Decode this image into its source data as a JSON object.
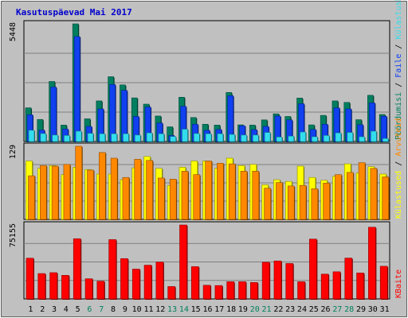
{
  "title": "Kasutuspäevad Mai 2017",
  "colors": {
    "background": "#C0C0C0",
    "title": "#0000CC",
    "panel": "#C0C0C0",
    "grid": "#808080",
    "visits": "#007F60",
    "pages": "#1040F0",
    "files": "#33DDEE",
    "hits": "#FF8800",
    "hits_light": "#FFFF00",
    "sites": "#FFBB00",
    "kbytes": "#FF0000",
    "weekend_day": "#00805C",
    "weekday": "#000000",
    "sep": "#000000"
  },
  "legend_right": {
    "top_segments": [
      {
        "text": "Pöördumisi",
        "color": "#007F60"
      },
      {
        "text": " / ",
        "color": "#000000"
      },
      {
        "text": "Faile",
        "color": "#1040F0"
      },
      {
        "text": " / ",
        "color": "#000000"
      },
      {
        "text": "Külastuskülgi",
        "color": "#33DDEE"
      }
    ],
    "middle_segments": [
      {
        "text": "Külastused",
        "color": "#FFFF00"
      },
      {
        "text": " / ",
        "color": "#000000"
      },
      {
        "text": "Arvuteid",
        "color": "#FF8800"
      }
    ],
    "bottom_segments": [
      {
        "text": "KBaite",
        "color": "#FF0000"
      }
    ]
  },
  "chart_data": [
    {
      "type": "bar",
      "panel": "top",
      "ymax_label": "5448",
      "ymax": 5448,
      "categories": [
        "1",
        "2",
        "3",
        "4",
        "5",
        "6",
        "7",
        "8",
        "9",
        "10",
        "11",
        "12",
        "13",
        "14",
        "15",
        "16",
        "17",
        "18",
        "19",
        "20",
        "21",
        "22",
        "23",
        "24",
        "25",
        "26",
        "27",
        "28",
        "29",
        "30",
        "31"
      ],
      "series": [
        {
          "name": "Pöördumisi",
          "color": "#007F60",
          "values": [
            1560,
            1020,
            2780,
            760,
            5448,
            1050,
            1880,
            3000,
            2620,
            2020,
            1730,
            1180,
            680,
            2050,
            1110,
            800,
            760,
            2270,
            770,
            760,
            1000,
            1280,
            1160,
            2010,
            770,
            1210,
            1880,
            1810,
            1010,
            2140,
            1250
          ]
        },
        {
          "name": "Faile",
          "color": "#1040F0",
          "values": [
            1240,
            530,
            2520,
            580,
            4860,
            700,
            1510,
            2640,
            2370,
            1160,
            1600,
            860,
            280,
            1630,
            800,
            520,
            560,
            2120,
            730,
            550,
            700,
            1180,
            1000,
            1750,
            560,
            800,
            1560,
            1510,
            780,
            1790,
            1170
          ]
        },
        {
          "name": "Külastuskülgi",
          "color": "#33DDEE",
          "values": [
            520,
            370,
            300,
            280,
            480,
            380,
            360,
            360,
            360,
            300,
            400,
            360,
            230,
            570,
            370,
            360,
            360,
            330,
            300,
            300,
            420,
            210,
            250,
            440,
            220,
            280,
            400,
            420,
            220,
            480,
            140
          ]
        }
      ]
    },
    {
      "type": "bar",
      "panel": "middle",
      "ymax_label": "129",
      "ymax": 129,
      "categories": [
        "1",
        "2",
        "3",
        "4",
        "5",
        "6",
        "7",
        "8",
        "9",
        "10",
        "11",
        "12",
        "13",
        "14",
        "15",
        "16",
        "17",
        "18",
        "19",
        "20",
        "21",
        "22",
        "23",
        "24",
        "25",
        "26",
        "27",
        "28",
        "29",
        "30",
        "31"
      ],
      "series": [
        {
          "name": "Külastused",
          "color": "#FFFF00",
          "values": [
            103,
            90,
            95,
            79,
            92,
            88,
            80,
            80,
            70,
            91,
            111,
            90,
            60,
            92,
            103,
            103,
            90,
            108,
            95,
            97,
            61,
            70,
            67,
            94,
            74,
            69,
            76,
            98,
            82,
            93,
            80
          ]
        },
        {
          "name": "Arvuteid",
          "color": "#FF8800",
          "values": [
            77,
            95,
            94,
            97,
            129,
            87,
            118,
            108,
            74,
            106,
            104,
            73,
            71,
            85,
            79,
            103,
            99,
            98,
            85,
            85,
            55,
            65,
            59,
            60,
            54,
            64,
            79,
            83,
            100,
            90,
            75
          ]
        }
      ]
    },
    {
      "type": "bar",
      "panel": "bottom",
      "ymax_label": "75155",
      "ymax": 75155,
      "categories": [
        "1",
        "2",
        "3",
        "4",
        "5",
        "6",
        "7",
        "8",
        "9",
        "10",
        "11",
        "12",
        "13",
        "14",
        "15",
        "16",
        "17",
        "18",
        "19",
        "20",
        "21",
        "22",
        "23",
        "24",
        "25",
        "26",
        "27",
        "28",
        "29",
        "30",
        "31"
      ],
      "series": [
        {
          "name": "KBaite",
          "color": "#FF0000",
          "values": [
            41400,
            25800,
            26700,
            24000,
            61200,
            20500,
            18000,
            60300,
            41000,
            30300,
            34300,
            37500,
            12600,
            75155,
            32800,
            13900,
            13600,
            17500,
            17500,
            16700,
            37300,
            38600,
            36000,
            17500,
            60800,
            25200,
            27600,
            41500,
            26400,
            72900,
            33200
          ]
        }
      ]
    }
  ],
  "x_labels": [
    {
      "text": "1",
      "weekend": false
    },
    {
      "text": "2",
      "weekend": false
    },
    {
      "text": "3",
      "weekend": false
    },
    {
      "text": "4",
      "weekend": false
    },
    {
      "text": "5",
      "weekend": false
    },
    {
      "text": "6",
      "weekend": true
    },
    {
      "text": "7",
      "weekend": true
    },
    {
      "text": "8",
      "weekend": false
    },
    {
      "text": "9",
      "weekend": false
    },
    {
      "text": "10",
      "weekend": false
    },
    {
      "text": "11",
      "weekend": false
    },
    {
      "text": "12",
      "weekend": false
    },
    {
      "text": "13",
      "weekend": true
    },
    {
      "text": "14",
      "weekend": true
    },
    {
      "text": "15",
      "weekend": false
    },
    {
      "text": "16",
      "weekend": false
    },
    {
      "text": "17",
      "weekend": false
    },
    {
      "text": "18",
      "weekend": false
    },
    {
      "text": "19",
      "weekend": false
    },
    {
      "text": "20",
      "weekend": true
    },
    {
      "text": "21",
      "weekend": true
    },
    {
      "text": "22",
      "weekend": false
    },
    {
      "text": "23",
      "weekend": false
    },
    {
      "text": "24",
      "weekend": false
    },
    {
      "text": "25",
      "weekend": false
    },
    {
      "text": "26",
      "weekend": false
    },
    {
      "text": "27",
      "weekend": true
    },
    {
      "text": "28",
      "weekend": true
    },
    {
      "text": "29",
      "weekend": false
    },
    {
      "text": "30",
      "weekend": false
    },
    {
      "text": "31",
      "weekend": false
    }
  ]
}
